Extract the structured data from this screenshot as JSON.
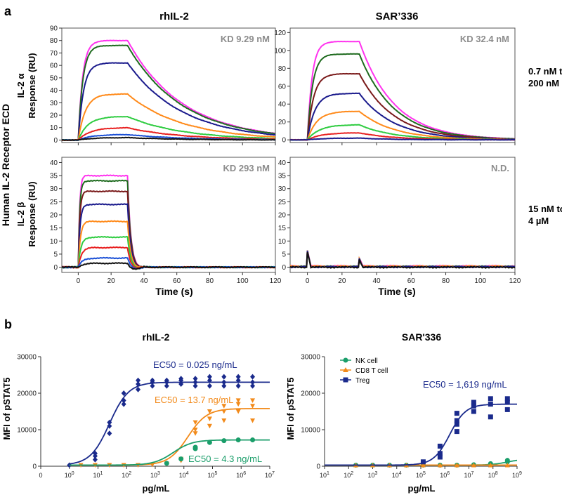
{
  "colors": {
    "magenta": "#ff33ee",
    "darkgreen": "#1f6b1f",
    "darkred": "#7a1a1a",
    "navy": "#1a1a8c",
    "orange": "#ff8a1a",
    "green": "#2ecc40",
    "red": "#e82020",
    "blue": "#1a4fd6",
    "black": "#111111",
    "nk": "#1a9e6a",
    "cd8": "#f28a1a",
    "treg": "#1a2a8c",
    "kd": "#8c8c8c"
  },
  "panel_a": {
    "label": "a",
    "col_titles": [
      "rhIL-2",
      "SAR’336"
    ],
    "y_super_label": "Human IL-2 Receptor ECD",
    "row_labels": [
      {
        "line1": "IL-2 α",
        "line2": "Response (RU)"
      },
      {
        "line1": "IL-2 β",
        "line2": "Response (RU)"
      }
    ],
    "conc_labels": [
      {
        "line1": "0.7 nM to",
        "line2": "200 nM"
      },
      {
        "line1": "15 nM to",
        "line2": "4 µM"
      }
    ],
    "x_title": "Time (s)"
  },
  "panel_b": {
    "label": "b",
    "y_title": "MFI of pSTAT5",
    "x_title": "pg/mL",
    "legend": [
      "NK cell",
      "CD8 T cell",
      "Treg"
    ]
  },
  "chart_data": [
    {
      "type": "line",
      "id": "a_rhil2_alpha",
      "title": "rhIL-2",
      "xlabel": "",
      "ylabel": "Response (RU)",
      "xlim": [
        -10,
        120
      ],
      "ylim": [
        -2,
        90
      ],
      "xticks": [
        0,
        20,
        40,
        60,
        80,
        100,
        120
      ],
      "yticks": [
        0,
        10,
        20,
        30,
        40,
        50,
        60,
        70,
        80,
        90
      ],
      "annotation": "KD 9.29 nM",
      "model": {
        "ton": 0,
        "toff": 30,
        "kon": 0.35,
        "koff": 0.03
      },
      "series": [
        {
          "name": "conc 8",
          "color": "magenta",
          "plateau": 80
        },
        {
          "name": "conc 7",
          "color": "darkgreen",
          "plateau": 76
        },
        {
          "name": "conc 6",
          "color": "navy",
          "plateau": 62
        },
        {
          "name": "conc 5",
          "color": "orange",
          "plateau": 37
        },
        {
          "name": "conc 4",
          "color": "green",
          "plateau": 19
        },
        {
          "name": "conc 3",
          "color": "red",
          "plateau": 10
        },
        {
          "name": "conc 2",
          "color": "blue",
          "plateau": 4.5
        },
        {
          "name": "conc 1",
          "color": "black",
          "plateau": 2
        }
      ]
    },
    {
      "type": "line",
      "id": "a_sar_alpha",
      "title": "SAR’336",
      "xlabel": "",
      "ylabel": "",
      "xlim": [
        -10,
        120
      ],
      "ylim": [
        -3,
        125
      ],
      "xticks": [
        0,
        20,
        40,
        60,
        80,
        100,
        120
      ],
      "yticks": [
        0,
        20,
        40,
        60,
        80,
        100,
        120
      ],
      "annotation": "KD 32.4 nM",
      "model": {
        "ton": 0,
        "toff": 30,
        "kon": 0.35,
        "koff": 0.05
      },
      "series": [
        {
          "name": "conc 8",
          "color": "magenta",
          "plateau": 110
        },
        {
          "name": "conc 7",
          "color": "darkgreen",
          "plateau": 96
        },
        {
          "name": "conc 6",
          "color": "darkred",
          "plateau": 74
        },
        {
          "name": "conc 5",
          "color": "navy",
          "plateau": 52
        },
        {
          "name": "conc 4",
          "color": "orange",
          "plateau": 32
        },
        {
          "name": "conc 3",
          "color": "green",
          "plateau": 17
        },
        {
          "name": "conc 2",
          "color": "red",
          "plateau": 8
        },
        {
          "name": "conc 1",
          "color": "navy",
          "plateau": 2
        }
      ]
    },
    {
      "type": "line",
      "id": "a_rhil2_beta",
      "title": "",
      "xlabel": "Time (s)",
      "ylabel": "Response (RU)",
      "xlim": [
        -10,
        120
      ],
      "ylim": [
        -2,
        42
      ],
      "xticks": [
        0,
        20,
        40,
        60,
        80,
        100,
        120
      ],
      "yticks": [
        0,
        5,
        10,
        15,
        20,
        25,
        30,
        35,
        40
      ],
      "annotation": "KD 293 nM",
      "model": {
        "ton": 0,
        "toff": 30,
        "kon": 1.2,
        "koff": 0.5
      },
      "series": [
        {
          "name": "conc 8",
          "color": "magenta",
          "plateau": 35
        },
        {
          "name": "conc 7",
          "color": "darkgreen",
          "plateau": 33
        },
        {
          "name": "conc 6",
          "color": "darkred",
          "plateau": 29
        },
        {
          "name": "conc 5",
          "color": "navy",
          "plateau": 24
        },
        {
          "name": "conc 4",
          "color": "orange",
          "plateau": 17.5
        },
        {
          "name": "conc 3",
          "color": "green",
          "plateau": 11.5
        },
        {
          "name": "conc 2",
          "color": "red",
          "plateau": 7.5
        },
        {
          "name": "conc 1",
          "color": "blue",
          "plateau": 3.5
        },
        {
          "name": "conc 0",
          "color": "black",
          "plateau": 1.5
        }
      ]
    },
    {
      "type": "line",
      "id": "a_sar_beta",
      "title": "",
      "xlabel": "Time (s)",
      "ylabel": "",
      "xlim": [
        -10,
        120
      ],
      "ylim": [
        -2,
        42
      ],
      "xticks": [
        0,
        20,
        40,
        60,
        80,
        100,
        120
      ],
      "yticks": [
        0,
        5,
        10,
        15,
        20,
        25,
        30,
        35,
        40
      ],
      "annotation": "N.D.",
      "model": {
        "ton": 0,
        "toff": 30,
        "kon": 0,
        "koff": 0
      },
      "series": [
        {
          "name": "conc 8",
          "color": "magenta",
          "plateau": 0.4
        },
        {
          "name": "conc 6",
          "color": "darkgreen",
          "plateau": 0.2
        },
        {
          "name": "conc 4",
          "color": "orange",
          "plateau": 0.3
        },
        {
          "name": "conc 2",
          "color": "navy",
          "plateau": 0.1
        },
        {
          "name": "conc 1",
          "color": "black",
          "plateau": 0.0
        }
      ]
    },
    {
      "type": "scatter",
      "id": "b_rhil2",
      "title": "rhIL-2",
      "xlabel": "pg/mL",
      "ylabel": "MFI of pSTAT5",
      "xscale": "log",
      "xlim_log": [
        -1,
        7
      ],
      "ylim": [
        0,
        30000
      ],
      "xtick_labels": [
        "0",
        "10^0",
        "10^1",
        "10^2",
        "10^3",
        "10^4",
        "10^5",
        "10^6",
        "10^7"
      ],
      "yticks": [
        0,
        10000,
        20000,
        30000
      ],
      "annotations": [
        {
          "text": "EC50 = 0.025 ng/mL",
          "color": "treg"
        },
        {
          "text": "EC50 = 13.7 ng/mL",
          "color": "cd8"
        },
        {
          "text": "EC50 = 4.3 ng/mL",
          "color": "nk"
        }
      ],
      "series": [
        {
          "name": "Treg",
          "color": "treg",
          "marker": "diamond",
          "fit": {
            "bottom": 300,
            "top": 23000,
            "log_ec50": 1.4,
            "hill": 1.3
          },
          "points": [
            [
              0,
              300
            ],
            [
              0.9,
              1800
            ],
            [
              0.9,
              2800
            ],
            [
              0.9,
              3500
            ],
            [
              1.4,
              9000
            ],
            [
              1.4,
              11000
            ],
            [
              1.4,
              12000
            ],
            [
              1.9,
              17000
            ],
            [
              1.9,
              18000
            ],
            [
              1.9,
              20000
            ],
            [
              2.4,
              21000
            ],
            [
              2.4,
              22500
            ],
            [
              2.4,
              23500
            ],
            [
              2.9,
              22000
            ],
            [
              2.9,
              23000
            ],
            [
              2.9,
              23500
            ],
            [
              3.4,
              22000
            ],
            [
              3.4,
              23000
            ],
            [
              3.4,
              23500
            ],
            [
              3.9,
              22500
            ],
            [
              3.9,
              23500
            ],
            [
              3.9,
              24000
            ],
            [
              4.4,
              22000
            ],
            [
              4.4,
              23000
            ],
            [
              4.4,
              24000
            ],
            [
              4.9,
              22000
            ],
            [
              4.9,
              23500
            ],
            [
              4.9,
              24500
            ],
            [
              5.4,
              22000
            ],
            [
              5.4,
              23000
            ],
            [
              5.4,
              24500
            ],
            [
              5.9,
              22000
            ],
            [
              5.9,
              23500
            ],
            [
              5.9,
              24500
            ],
            [
              6.4,
              22000
            ],
            [
              6.4,
              23000
            ],
            [
              6.4,
              24500
            ]
          ]
        },
        {
          "name": "CD8 T cell",
          "color": "cd8",
          "marker": "triangle-down",
          "fit": {
            "bottom": 300,
            "top": 15800,
            "log_ec50": 4.14,
            "hill": 1.3
          },
          "points": [
            [
              0.4,
              300
            ],
            [
              0.9,
              300
            ],
            [
              1.4,
              300
            ],
            [
              1.9,
              300
            ],
            [
              2.4,
              300
            ],
            [
              2.9,
              400
            ],
            [
              3.4,
              700
            ],
            [
              3.9,
              1500
            ],
            [
              3.9,
              2000
            ],
            [
              4.4,
              9000
            ],
            [
              4.4,
              10000
            ],
            [
              4.4,
              12000
            ],
            [
              4.9,
              11000
            ],
            [
              4.9,
              13000
            ],
            [
              4.9,
              15000
            ],
            [
              5.4,
              12500
            ],
            [
              5.4,
              15000
            ],
            [
              5.4,
              16500
            ],
            [
              5.9,
              15000
            ],
            [
              5.9,
              17000
            ],
            [
              5.9,
              18000
            ],
            [
              6.4,
              12500
            ],
            [
              6.4,
              16500
            ],
            [
              6.4,
              18000
            ]
          ]
        },
        {
          "name": "NK cell",
          "color": "nk",
          "marker": "circle",
          "fit": {
            "bottom": 300,
            "top": 7200,
            "log_ec50": 3.63,
            "hill": 1.3
          },
          "points": [
            [
              3.4,
              800
            ],
            [
              3.9,
              2000
            ],
            [
              4.4,
              4800
            ],
            [
              4.4,
              5200
            ],
            [
              4.9,
              6500
            ],
            [
              5.4,
              7000
            ],
            [
              5.9,
              7200
            ],
            [
              6.4,
              7200
            ]
          ]
        }
      ]
    },
    {
      "type": "scatter",
      "id": "b_sar",
      "title": "SAR'336",
      "xlabel": "pg/mL",
      "ylabel": "MFI of pSTAT5",
      "xscale": "log",
      "xlim_log": [
        1,
        9
      ],
      "ylim": [
        0,
        30000
      ],
      "xtick_labels": [
        "10^1",
        "10^2",
        "10^3",
        "10^4",
        "10^5",
        "10^6",
        "10^7",
        "10^8",
        "10^9"
      ],
      "yticks": [
        0,
        10000,
        20000,
        30000
      ],
      "legend_position": "top-left",
      "annotations": [
        {
          "text": "EC50 = 1,619 ng/mL",
          "color": "treg"
        }
      ],
      "series": [
        {
          "name": "NK cell",
          "color": "nk",
          "marker": "circle",
          "fit": {
            "bottom": 300,
            "top": 2000,
            "log_ec50": 8.6,
            "hill": 1.3
          },
          "points": [
            [
              2.3,
              300
            ],
            [
              3.0,
              300
            ],
            [
              3.7,
              300
            ],
            [
              4.4,
              300
            ],
            [
              5.1,
              300
            ],
            [
              5.8,
              300
            ],
            [
              6.5,
              300
            ],
            [
              7.2,
              400
            ],
            [
              7.9,
              700
            ],
            [
              8.6,
              1200
            ],
            [
              8.6,
              1600
            ]
          ]
        },
        {
          "name": "CD8 T cell",
          "color": "cd8",
          "marker": "triangle-up",
          "fit": {
            "bottom": 300,
            "top": 300,
            "log_ec50": 6.0,
            "hill": 1.0
          },
          "points": [
            [
              2.3,
              300
            ],
            [
              3.0,
              300
            ],
            [
              3.7,
              300
            ],
            [
              4.4,
              300
            ],
            [
              5.1,
              300
            ],
            [
              5.8,
              300
            ],
            [
              6.5,
              300
            ],
            [
              7.2,
              300
            ],
            [
              7.9,
              300
            ],
            [
              8.6,
              300
            ]
          ]
        },
        {
          "name": "Treg",
          "color": "treg",
          "marker": "square",
          "fit": {
            "bottom": 300,
            "top": 17000,
            "log_ec50": 6.2,
            "hill": 1.3
          },
          "points": [
            [
              5.1,
              1200
            ],
            [
              5.8,
              2500
            ],
            [
              5.8,
              3500
            ],
            [
              5.8,
              5500
            ],
            [
              6.5,
              9500
            ],
            [
              6.5,
              11500
            ],
            [
              6.5,
              12500
            ],
            [
              6.5,
              14500
            ],
            [
              7.2,
              15000
            ],
            [
              7.2,
              16500
            ],
            [
              7.2,
              17500
            ],
            [
              7.9,
              13500
            ],
            [
              7.9,
              17000
            ],
            [
              7.9,
              18500
            ],
            [
              8.6,
              15500
            ],
            [
              8.6,
              17500
            ],
            [
              8.6,
              18500
            ]
          ]
        }
      ]
    }
  ]
}
